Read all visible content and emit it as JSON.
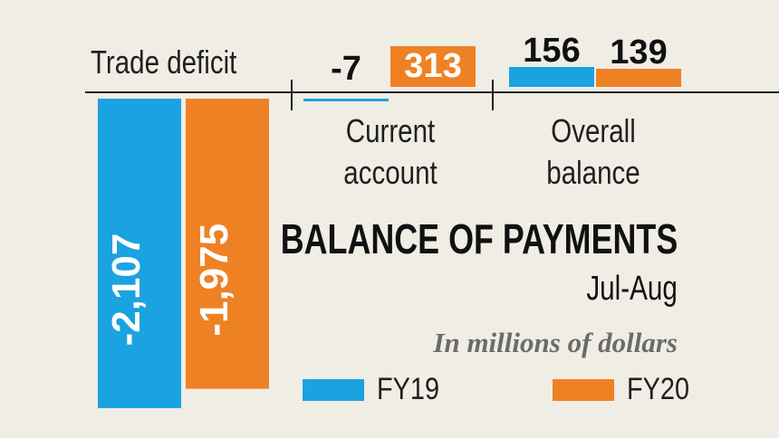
{
  "chart_data": {
    "type": "bar",
    "title": "BALANCE OF PAYMENTS",
    "title_suffix": "Jul-Aug",
    "subtitle": "In millions of dollars",
    "categories": [
      "Trade deficit",
      "Current account",
      "Overall balance"
    ],
    "series": [
      {
        "name": "FY19",
        "color": "#1aa3e0",
        "values": [
          -2107,
          -7,
          156
        ],
        "labels": [
          "-2,107",
          "-7",
          "156"
        ]
      },
      {
        "name": "FY20",
        "color": "#ef8125",
        "values": [
          -1975,
          313,
          139
        ],
        "labels": [
          "-1,975",
          "313",
          "139"
        ]
      }
    ],
    "legend_position": "bottom-right",
    "grid": false
  }
}
